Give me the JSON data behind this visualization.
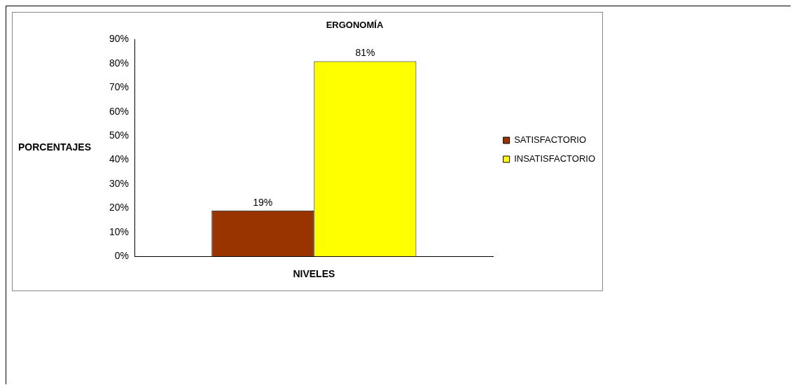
{
  "chart_data": {
    "type": "bar",
    "title": "ERGONOMÍA",
    "xlabel": "NIVELES",
    "ylabel": "PORCENTAJES",
    "categories": [
      null
    ],
    "series": [
      {
        "name": "SATISFACTORIO",
        "color": "#993300",
        "values": [
          19
        ],
        "value_labels": [
          "19%"
        ]
      },
      {
        "name": "INSATISFACTORIO",
        "color": "#ffff00",
        "values": [
          81
        ],
        "value_labels": [
          "81%"
        ]
      }
    ],
    "ylim": [
      0,
      90
    ],
    "yticks": [
      {
        "value": 0,
        "label": "0%"
      },
      {
        "value": 10,
        "label": "10%"
      },
      {
        "value": 20,
        "label": "20%"
      },
      {
        "value": 30,
        "label": "30%"
      },
      {
        "value": 40,
        "label": "40%"
      },
      {
        "value": 50,
        "label": "50%"
      },
      {
        "value": 60,
        "label": "60%"
      },
      {
        "value": 70,
        "label": "70%"
      },
      {
        "value": 80,
        "label": "80%"
      },
      {
        "value": 90,
        "label": "90%"
      }
    ],
    "grid": false,
    "legend": "right"
  }
}
